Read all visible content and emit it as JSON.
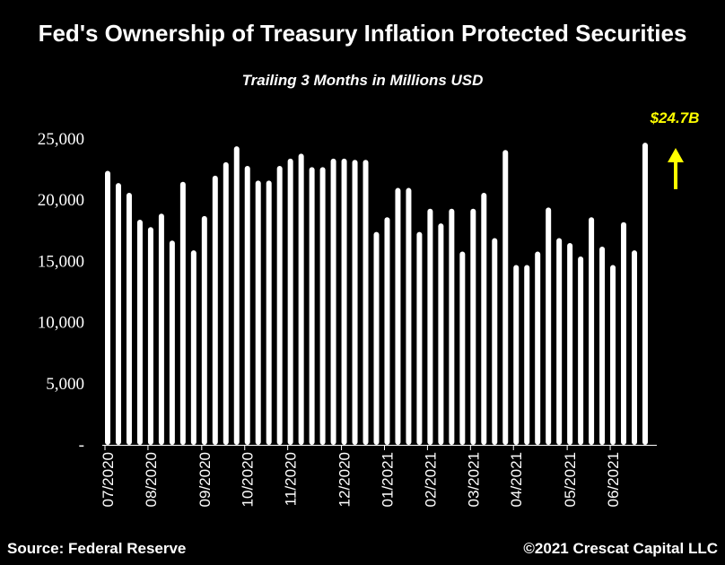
{
  "colors": {
    "background": "#000000",
    "bars": "#ffffff",
    "annotation": "#ffff00"
  },
  "footer": {
    "source": "Source: Federal Reserve",
    "copyright": "©2021 Crescat Capital LLC"
  },
  "chart_data": {
    "type": "bar",
    "title": "Fed's Ownership of Treasury Inflation Protected Securities",
    "subtitle": "Trailing 3 Months in Millions USD",
    "xlabel": "",
    "ylabel": "",
    "ylim": [
      0,
      25000
    ],
    "yticks": [
      0,
      5000,
      10000,
      15000,
      20000,
      25000
    ],
    "ytick_labels": [
      "-",
      "5,000",
      "10,000",
      "15,000",
      "20,000",
      "25,000"
    ],
    "x_month_labels": [
      {
        "label": "07/2020",
        "bar_index": 0
      },
      {
        "label": "08/2020",
        "bar_index": 4
      },
      {
        "label": "09/2020",
        "bar_index": 9
      },
      {
        "label": "10/2020",
        "bar_index": 13
      },
      {
        "label": "11/2020",
        "bar_index": 17
      },
      {
        "label": "12/2020",
        "bar_index": 22
      },
      {
        "label": "01/2021",
        "bar_index": 26
      },
      {
        "label": "02/2021",
        "bar_index": 30
      },
      {
        "label": "03/2021",
        "bar_index": 34
      },
      {
        "label": "04/2021",
        "bar_index": 38
      },
      {
        "label": "05/2021",
        "bar_index": 43
      },
      {
        "label": "06/2021",
        "bar_index": 47
      }
    ],
    "values": [
      22400,
      21400,
      20600,
      18400,
      17800,
      18900,
      16700,
      21500,
      15900,
      18700,
      22000,
      23100,
      24400,
      22800,
      21600,
      21600,
      22800,
      23400,
      23800,
      22700,
      22700,
      23400,
      23400,
      23300,
      23300,
      17400,
      18600,
      21000,
      21000,
      17400,
      19300,
      18100,
      19300,
      15800,
      19300,
      20600,
      16900,
      24100,
      14700,
      14700,
      15800,
      19400,
      16900,
      16500,
      15400,
      18600,
      16200,
      14700,
      18200,
      15900,
      24700
    ],
    "annotation": {
      "text": "$24.7B",
      "bar_index": 50,
      "arrow": "up"
    }
  }
}
